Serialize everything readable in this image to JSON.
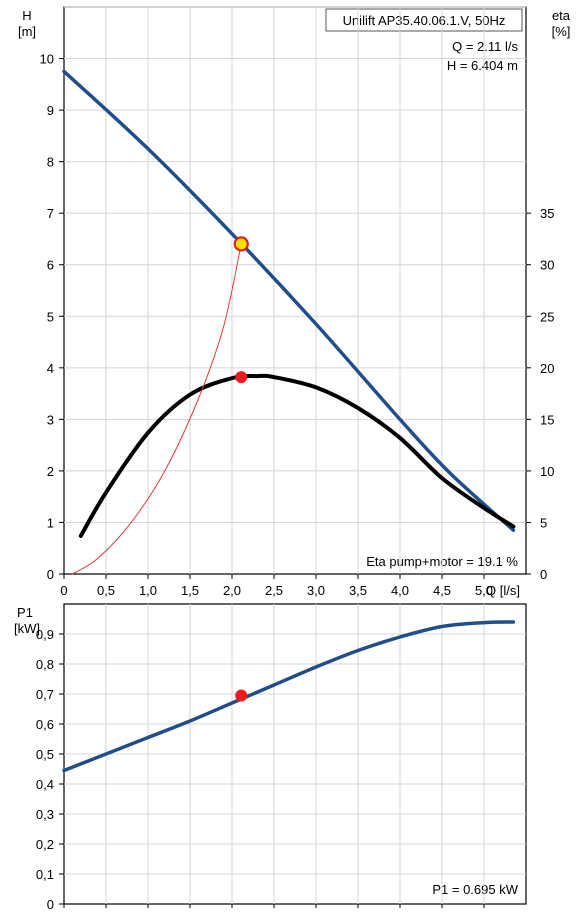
{
  "chart_data": [
    {
      "type": "line",
      "title": "Unilift AP35.40.06.1.V, 50Hz",
      "annotations": [
        "Q = 2.11 l/s",
        "H = 6.404 m",
        "Eta pump+motor = 19.1 %"
      ],
      "y_label_lines": [
        "H",
        "[m]"
      ],
      "y2_label_lines": [
        "eta",
        "[%]"
      ],
      "x_label": "Q [l/s]",
      "xlim": [
        0,
        5.5
      ],
      "ylim": [
        0,
        11
      ],
      "y2lim": [
        0,
        55
      ],
      "x_ticks": [
        "0",
        "0,5",
        "1,0",
        "1,5",
        "2,0",
        "2,5",
        "3,0",
        "3,5",
        "4,0",
        "4,5",
        "5,0"
      ],
      "y_ticks": [
        "0",
        "1",
        "2",
        "3",
        "4",
        "5",
        "6",
        "7",
        "8",
        "9",
        "10"
      ],
      "y2_ticks": [
        "0",
        "5",
        "10",
        "15",
        "20",
        "25",
        "30",
        "35"
      ],
      "grid": true,
      "series": [
        {
          "axis": "H",
          "color": "#1f4e8a",
          "width": 3.5,
          "points": [
            [
              0,
              9.75
            ],
            [
              1.0,
              8.25
            ],
            [
              2.0,
              6.6
            ],
            [
              3.0,
              4.85
            ],
            [
              4.0,
              3.0
            ],
            [
              4.6,
              1.95
            ],
            [
              5.35,
              0.85
            ]
          ]
        },
        {
          "axis": "eta",
          "color": "#000000",
          "width": 4,
          "points": [
            [
              0.2,
              3.7
            ],
            [
              0.5,
              7.9
            ],
            [
              1.0,
              13.7
            ],
            [
              1.5,
              17.4
            ],
            [
              2.0,
              19.0
            ],
            [
              2.3,
              19.2
            ],
            [
              2.5,
              19.1
            ],
            [
              3.0,
              18.1
            ],
            [
              3.5,
              16.1
            ],
            [
              4.0,
              13.2
            ],
            [
              4.5,
              9.3
            ],
            [
              5.0,
              6.4
            ],
            [
              5.35,
              4.6
            ]
          ]
        },
        {
          "axis": "H",
          "color": "#e03a3a",
          "width": 1,
          "points": [
            [
              0.1,
              0
            ],
            [
              0.4,
              0.3
            ],
            [
              0.8,
              1.0
            ],
            [
              1.2,
              2.0
            ],
            [
              1.6,
              3.4
            ],
            [
              1.9,
              4.8
            ],
            [
              2.11,
              6.404
            ]
          ]
        }
      ],
      "duty_point": {
        "q": 2.11,
        "h": 6.404,
        "eta": 19.1
      }
    },
    {
      "type": "line",
      "y_label_lines": [
        "P1",
        "[kW]"
      ],
      "annotations": [
        "P1 = 0.695 kW"
      ],
      "xlim": [
        0,
        5.5
      ],
      "ylim": [
        0,
        1.0
      ],
      "y_ticks": [
        "0",
        "0,1",
        "0,2",
        "0,3",
        "0,4",
        "0,5",
        "0,6",
        "0,7",
        "0,8",
        "0,9"
      ],
      "grid": true,
      "series": [
        {
          "color": "#1f4e8a",
          "width": 3.5,
          "points": [
            [
              0,
              0.445
            ],
            [
              0.5,
              0.5
            ],
            [
              1.0,
              0.555
            ],
            [
              1.5,
              0.61
            ],
            [
              2.0,
              0.67
            ],
            [
              2.5,
              0.73
            ],
            [
              3.0,
              0.79
            ],
            [
              3.5,
              0.845
            ],
            [
              4.0,
              0.89
            ],
            [
              4.5,
              0.925
            ],
            [
              5.0,
              0.938
            ],
            [
              5.35,
              0.94
            ]
          ]
        }
      ],
      "duty_point": {
        "q": 2.11,
        "p1": 0.695
      }
    }
  ]
}
